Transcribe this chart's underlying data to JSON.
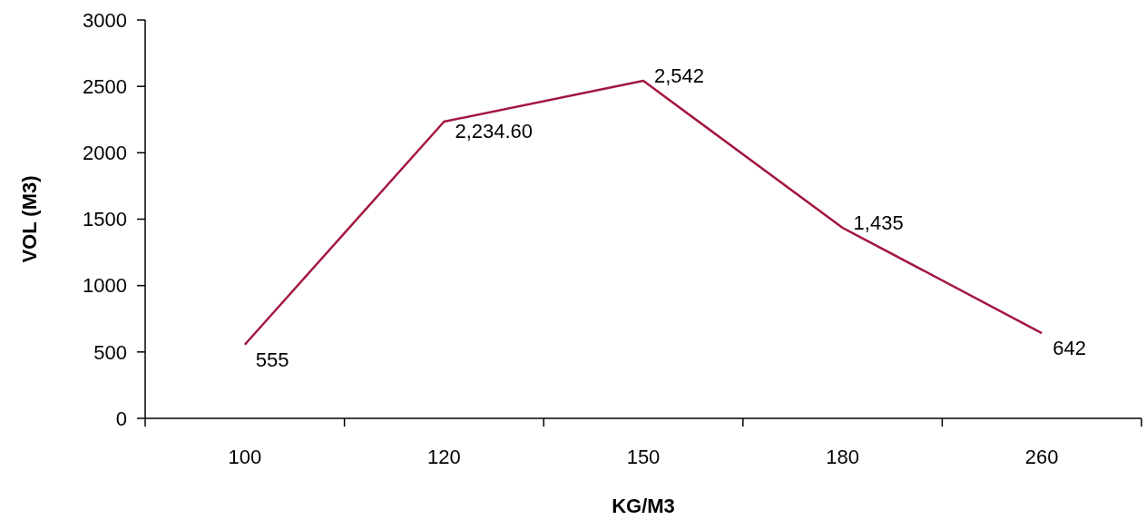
{
  "chart_data": {
    "type": "line",
    "xlabel": "KG/M3",
    "ylabel": "VOL (M3)",
    "categories": [
      "100",
      "120",
      "150",
      "180",
      "260"
    ],
    "series": [
      {
        "color": "#a3173f",
        "values": [
          555,
          2234.6,
          2542,
          1435,
          642
        ],
        "value_labels": [
          "555",
          "2,234.60",
          "2,542",
          "1,435",
          "642"
        ]
      }
    ],
    "ylim": [
      0,
      3000
    ],
    "yticks": [
      0,
      500,
      1000,
      1500,
      2000,
      2500,
      3000
    ],
    "grid": false,
    "marker": "none",
    "line_style": "solid"
  }
}
